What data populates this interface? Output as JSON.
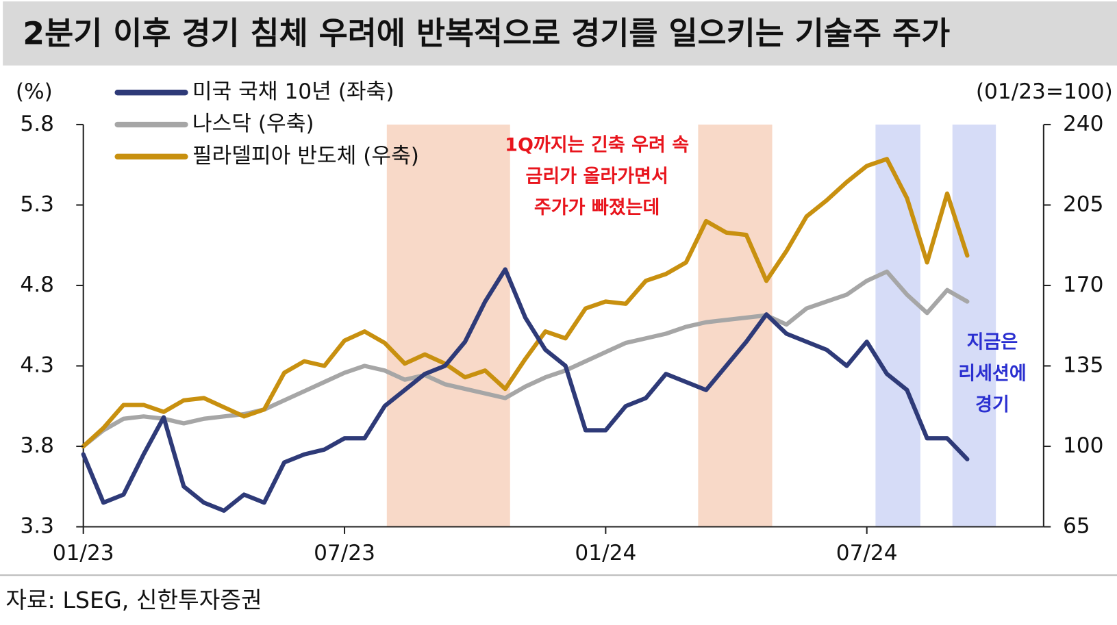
{
  "chart_data": {
    "type": "line",
    "title": "2분기 이후 경기 침체 우려에 반복적으로 경기를 일으키는 기술주 주가",
    "y_label": "(%)",
    "y2_label": "(01/23=100)",
    "source": "자료: LSEG, 신한투자증권",
    "categories": [
      "01/23",
      null,
      null,
      null,
      null,
      null,
      null,
      null,
      null,
      null,
      null,
      null,
      null,
      "07/23",
      null,
      null,
      null,
      null,
      null,
      null,
      null,
      null,
      null,
      null,
      null,
      null,
      "01/24",
      null,
      null,
      null,
      null,
      null,
      null,
      null,
      null,
      null,
      null,
      null,
      null,
      "07/24",
      null,
      null,
      null,
      null,
      null
    ],
    "ylim": [
      3.3,
      5.8
    ],
    "yticks": [
      3.3,
      3.8,
      4.3,
      4.8,
      5.3,
      5.8
    ],
    "y2lim": [
      65,
      240
    ],
    "y2ticks": [
      65,
      100,
      135,
      170,
      205,
      240
    ],
    "series": [
      {
        "name": "미국 국채 10년 (좌축)",
        "color": "#2e3a78",
        "axis": "y",
        "values": [
          3.75,
          3.45,
          3.5,
          3.75,
          3.98,
          3.55,
          3.45,
          3.4,
          3.5,
          3.45,
          3.7,
          3.75,
          3.78,
          3.85,
          3.85,
          4.05,
          4.15,
          4.25,
          4.3,
          4.45,
          4.7,
          4.9,
          4.6,
          4.4,
          4.3,
          3.9,
          3.9,
          4.05,
          4.1,
          4.25,
          4.2,
          4.15,
          4.3,
          4.45,
          4.62,
          4.5,
          4.45,
          4.4,
          4.3,
          4.45,
          4.25,
          4.15,
          3.85,
          3.85,
          3.72
        ]
      },
      {
        "name": "나스닥 (우축)",
        "color": "#a6a6a6",
        "axis": "y2",
        "values": [
          100,
          107,
          112,
          113,
          112,
          110,
          112,
          113,
          114,
          116,
          120,
          124,
          128,
          132,
          135,
          133,
          129,
          131,
          127,
          125,
          123,
          121,
          126,
          130,
          133,
          137,
          141,
          145,
          147,
          149,
          152,
          154,
          155,
          156,
          157,
          153,
          160,
          163,
          166,
          172,
          176,
          166,
          158,
          168,
          163
        ]
      },
      {
        "name": "필라델피아 반도체 (우축)",
        "color": "#c8900f",
        "axis": "y2",
        "values": [
          100,
          108,
          118,
          118,
          115,
          120,
          121,
          117,
          113,
          116,
          132,
          137,
          135,
          146,
          150,
          145,
          136,
          140,
          136,
          130,
          133,
          125,
          138,
          150,
          147,
          160,
          163,
          162,
          172,
          175,
          180,
          198,
          193,
          192,
          172,
          185,
          200,
          207,
          215,
          222,
          225,
          208,
          180,
          210,
          183
        ]
      }
    ],
    "annotations": [
      {
        "color": "#e8141c",
        "lines": [
          "1Q까지는 긴축 우려 속",
          "금리가 올라가면서",
          "주가가 빠졌는데"
        ]
      },
      {
        "color": "#2a2fd0",
        "lines": [
          "지금은",
          "리세션에",
          "경기"
        ]
      }
    ]
  }
}
